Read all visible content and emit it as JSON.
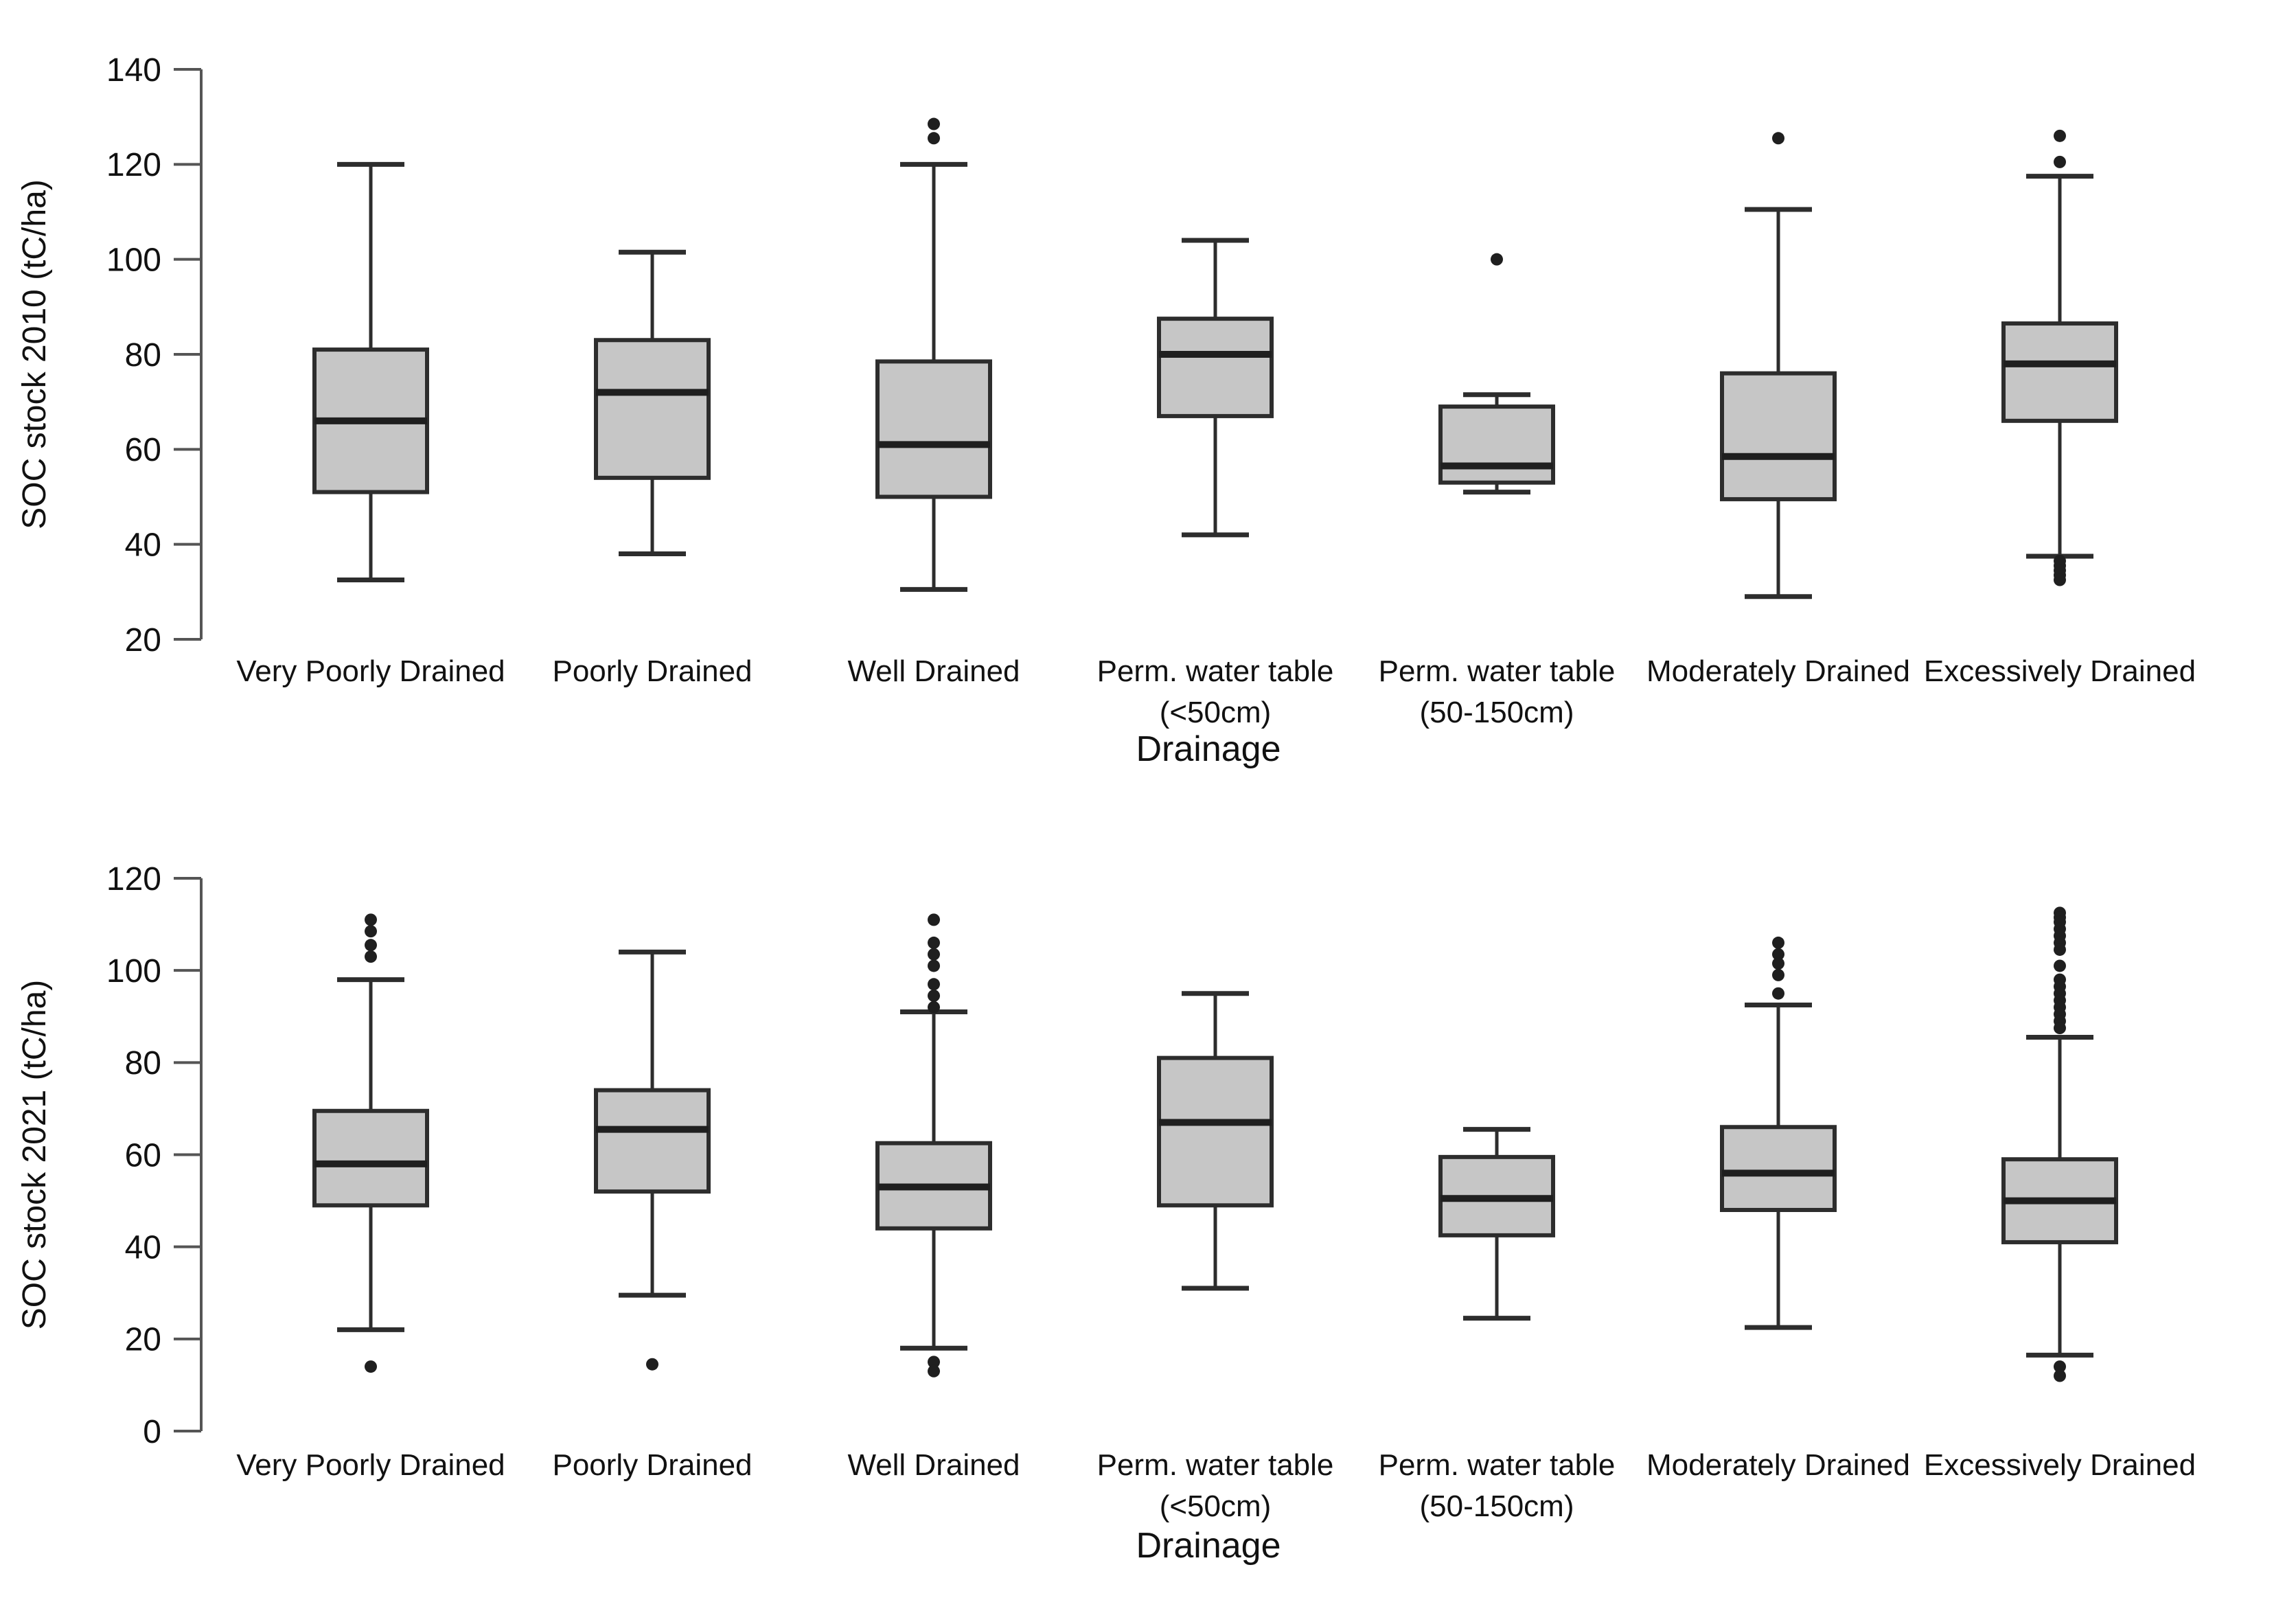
{
  "page": {
    "background": "#ffffff"
  },
  "styles": {
    "box_fill": "#c6c6c6",
    "box_stroke": "#2d2d2d",
    "median_color": "#1f1f1f",
    "whisker_color": "#2d2d2d",
    "outlier_color": "#1f1f1f",
    "axis_color": "#555555",
    "text_color": "#111111"
  },
  "chart_data": [
    {
      "type": "boxplot",
      "id": "chart-2010",
      "ylabel": "SOC stock 2010 (tC/ha)",
      "xlabel": "Drainage",
      "ylim": [
        20,
        140
      ],
      "yticks": [
        140,
        120,
        100,
        80,
        60,
        40,
        20
      ],
      "grid": false,
      "legend": false,
      "categories": [
        "Very Poorly Drained",
        "Poorly Drained",
        "Well Drained",
        "Perm. water table (<50cm)",
        "Perm. water table (50-150cm)",
        "Moderately Drained",
        "Excessively Drained"
      ],
      "category_label_lines": [
        [
          "Very Poorly Drained"
        ],
        [
          "Poorly Drained"
        ],
        [
          "Well Drained"
        ],
        [
          "Perm. water table",
          "(<50cm)"
        ],
        [
          "Perm. water table",
          "(50-150cm)"
        ],
        [
          "Moderately Drained"
        ],
        [
          "Excessively Drained"
        ]
      ],
      "series": [
        {
          "name": "Very Poorly Drained",
          "whislo": 32.5,
          "q1": 51,
          "med": 66,
          "q3": 81,
          "whishi": 120,
          "outliers": []
        },
        {
          "name": "Poorly Drained",
          "whislo": 38,
          "q1": 54,
          "med": 72,
          "q3": 83,
          "whishi": 101.5,
          "outliers": []
        },
        {
          "name": "Well Drained",
          "whislo": 30.5,
          "q1": 50,
          "med": 61,
          "q3": 78.5,
          "whishi": 120,
          "outliers": [
            128.5,
            125.5
          ]
        },
        {
          "name": "Perm. water table (<50cm)",
          "whislo": 42,
          "q1": 67,
          "med": 80,
          "q3": 87.5,
          "whishi": 104,
          "outliers": []
        },
        {
          "name": "Perm. water table (50-150cm)",
          "whislo": 51,
          "q1": 53,
          "med": 56.5,
          "q3": 69,
          "whishi": 71.5,
          "outliers": [
            100
          ]
        },
        {
          "name": "Moderately Drained",
          "whislo": 29,
          "q1": 49.5,
          "med": 58.5,
          "q3": 76,
          "whishi": 110.5,
          "outliers": [
            125.5
          ]
        },
        {
          "name": "Excessively Drained",
          "whislo": 37.5,
          "q1": 66,
          "med": 78,
          "q3": 86.5,
          "whishi": 117.5,
          "outliers": [
            126,
            120.5,
            36.5,
            35.5,
            34.5,
            33.5,
            32.5
          ]
        }
      ]
    },
    {
      "type": "boxplot",
      "id": "chart-2021",
      "ylabel": "SOC stock 2021 (tC/ha)",
      "xlabel": "Drainage",
      "ylim": [
        0,
        120
      ],
      "yticks": [
        120,
        100,
        80,
        60,
        40,
        20,
        0
      ],
      "grid": false,
      "legend": false,
      "categories": [
        "Very Poorly Drained",
        "Poorly Drained",
        "Well Drained",
        "Perm. water table (<50cm)",
        "Perm. water table (50-150cm)",
        "Moderately Drained",
        "Excessively Drained"
      ],
      "category_label_lines": [
        [
          "Very Poorly Drained"
        ],
        [
          "Poorly Drained"
        ],
        [
          "Well Drained"
        ],
        [
          "Perm. water table",
          "(<50cm)"
        ],
        [
          "Perm. water table",
          "(50-150cm)"
        ],
        [
          "Moderately Drained"
        ],
        [
          "Excessively Drained"
        ]
      ],
      "series": [
        {
          "name": "Very Poorly Drained",
          "whislo": 22,
          "q1": 49,
          "med": 58,
          "q3": 69.5,
          "whishi": 98,
          "outliers": [
            111,
            108.5,
            105.5,
            103,
            14
          ]
        },
        {
          "name": "Poorly Drained",
          "whislo": 29.5,
          "q1": 52,
          "med": 65.5,
          "q3": 74,
          "whishi": 104,
          "outliers": [
            14.5
          ]
        },
        {
          "name": "Well Drained",
          "whislo": 18,
          "q1": 44,
          "med": 53,
          "q3": 62.5,
          "whishi": 91,
          "outliers": [
            111,
            106,
            103.5,
            101,
            97,
            94.5,
            92,
            15,
            13
          ]
        },
        {
          "name": "Perm. water table (<50cm)",
          "whislo": 31,
          "q1": 49,
          "med": 67,
          "q3": 81,
          "whishi": 95,
          "outliers": []
        },
        {
          "name": "Perm. water table (50-150cm)",
          "whislo": 24.5,
          "q1": 42.5,
          "med": 50.5,
          "q3": 59.5,
          "whishi": 65.5,
          "outliers": []
        },
        {
          "name": "Moderately Drained",
          "whislo": 22.5,
          "q1": 48,
          "med": 56,
          "q3": 66,
          "whishi": 92.5,
          "outliers": [
            106,
            103.5,
            101.5,
            99,
            95
          ]
        },
        {
          "name": "Excessively Drained",
          "whislo": 16.5,
          "q1": 41,
          "med": 50,
          "q3": 59,
          "whishi": 85.5,
          "outliers": [
            112.5,
            111.5,
            110.5,
            109,
            107.5,
            106,
            104.5,
            101,
            98,
            96.5,
            95,
            93.5,
            92,
            90.5,
            89,
            87.5,
            14,
            12
          ]
        }
      ]
    }
  ]
}
